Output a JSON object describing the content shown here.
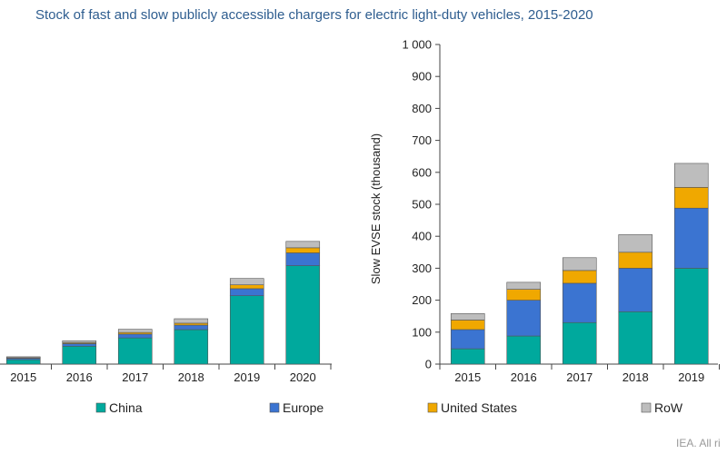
{
  "title": "Stock of fast and slow publicly accessible chargers for electric light-duty vehicles, 2015-2020",
  "source": "IEA. All ri",
  "colors": {
    "China": "#00a99d",
    "Europe": "#3b74d1",
    "United States": "#f0a800",
    "RoW": "#bdbdbd"
  },
  "legend": [
    "China",
    "Europe",
    "United States",
    "RoW"
  ],
  "chart_data": [
    {
      "type": "bar",
      "stacked": true,
      "categories": [
        "2015",
        "2016",
        "2017",
        "2018",
        "2019",
        "2020"
      ],
      "series": [
        {
          "name": "China",
          "values": [
            14,
            56,
            82,
            108,
            214,
            308
          ]
        },
        {
          "name": "Europe",
          "values": [
            4,
            8,
            12,
            14,
            22,
            40
          ]
        },
        {
          "name": "United States",
          "values": [
            2,
            3,
            5,
            6,
            12,
            16
          ]
        },
        {
          "name": "RoW",
          "values": [
            3,
            6,
            10,
            14,
            20,
            20
          ]
        }
      ],
      "ylim": [
        0,
        1000
      ],
      "ylabel": "",
      "grid": false
    },
    {
      "type": "bar",
      "stacked": true,
      "categories": [
        "2015",
        "2016",
        "2017",
        "2018",
        "2019"
      ],
      "series": [
        {
          "name": "China",
          "values": [
            48,
            88,
            130,
            164,
            300
          ]
        },
        {
          "name": "Europe",
          "values": [
            60,
            112,
            123,
            136,
            188
          ]
        },
        {
          "name": "United States",
          "values": [
            30,
            34,
            40,
            50,
            65
          ]
        },
        {
          "name": "RoW",
          "values": [
            20,
            22,
            40,
            55,
            75
          ]
        }
      ],
      "ylim": [
        0,
        1000
      ],
      "yticks": [
        "0",
        "100",
        "200",
        "300",
        "400",
        "500",
        "600",
        "700",
        "800",
        "900",
        "1 000"
      ],
      "ylabel": "Slow EVSE stock (thousand)",
      "grid": false
    }
  ]
}
